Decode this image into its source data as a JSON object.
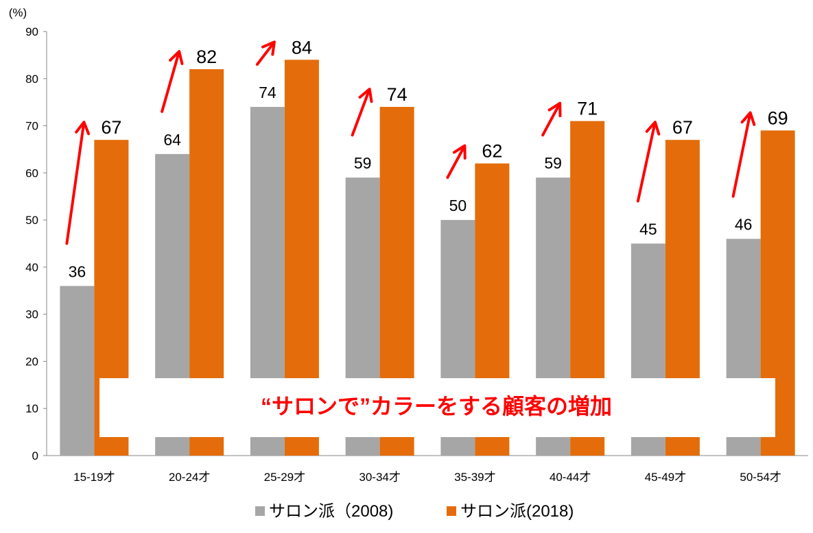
{
  "chart_data": {
    "type": "bar",
    "unit_label": "(%)",
    "categories": [
      "15-19才",
      "20-24才",
      "25-29才",
      "30-34才",
      "35-39才",
      "40-44才",
      "45-49才",
      "50-54才"
    ],
    "series": [
      {
        "name": "サロン派（2008)",
        "color": "#a6a6a6",
        "values": [
          36,
          64,
          74,
          59,
          50,
          59,
          45,
          46
        ]
      },
      {
        "name": "サロン派(2018)",
        "color": "#e46c0a",
        "values": [
          67,
          82,
          84,
          74,
          62,
          71,
          67,
          69
        ]
      }
    ],
    "ylim": [
      0,
      90
    ],
    "yticks": [
      0,
      10,
      20,
      30,
      40,
      50,
      60,
      70,
      80,
      90
    ],
    "grid": false,
    "legend_position": "bottom",
    "annotation": "“サロンで”カラーをする顧客の増加",
    "annotation_color": "#ff0000",
    "arrow_color": "#ff0000"
  }
}
